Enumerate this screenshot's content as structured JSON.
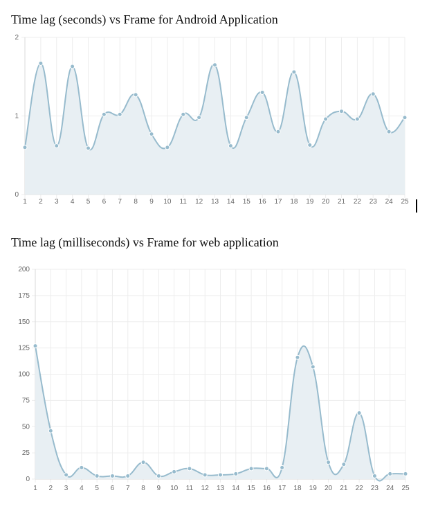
{
  "chart_data": [
    {
      "type": "area",
      "title": "Time lag (seconds) vs Frame for Android Application",
      "categories": [
        "1",
        "2",
        "3",
        "4",
        "5",
        "6",
        "7",
        "8",
        "9",
        "10",
        "11",
        "12",
        "13",
        "14",
        "15",
        "16",
        "17",
        "18",
        "19",
        "20",
        "21",
        "22",
        "23",
        "24",
        "25"
      ],
      "series": [
        {
          "values": [
            0.6,
            1.67,
            0.62,
            1.63,
            0.59,
            1.02,
            1.02,
            1.27,
            0.77,
            0.6,
            1.02,
            0.98,
            1.65,
            0.62,
            0.98,
            1.3,
            0.8,
            1.56,
            0.63,
            0.96,
            1.06,
            0.96,
            1.28,
            0.8,
            0.98
          ]
        }
      ],
      "y_ticks": [
        "0",
        "1",
        "2"
      ],
      "ylim": [
        0,
        2
      ],
      "grid": true,
      "colors": {
        "line": "#97bbcd",
        "fill": "#e8eff3",
        "point": "#97bbcd",
        "grid": "#ededed"
      }
    },
    {
      "type": "area",
      "title": "Time lag (milliseconds) vs Frame for web application",
      "categories": [
        "1",
        "2",
        "3",
        "4",
        "5",
        "6",
        "7",
        "8",
        "9",
        "10",
        "11",
        "12",
        "13",
        "14",
        "15",
        "16",
        "17",
        "18",
        "19",
        "20",
        "21",
        "22",
        "23",
        "24",
        "25"
      ],
      "series": [
        {
          "values": [
            127,
            46,
            4,
            11,
            3,
            3,
            3,
            16,
            3,
            7,
            10,
            4,
            4,
            5,
            10,
            10,
            11,
            116,
            107,
            16,
            14,
            63,
            3,
            5,
            5
          ]
        }
      ],
      "y_ticks": [
        "0",
        "25",
        "50",
        "75",
        "100",
        "125",
        "150",
        "175",
        "200"
      ],
      "ylim": [
        0,
        200
      ],
      "grid": true,
      "colors": {
        "line": "#97bbcd",
        "fill": "#e8eff3",
        "point": "#97bbcd",
        "grid": "#ededed"
      }
    }
  ]
}
